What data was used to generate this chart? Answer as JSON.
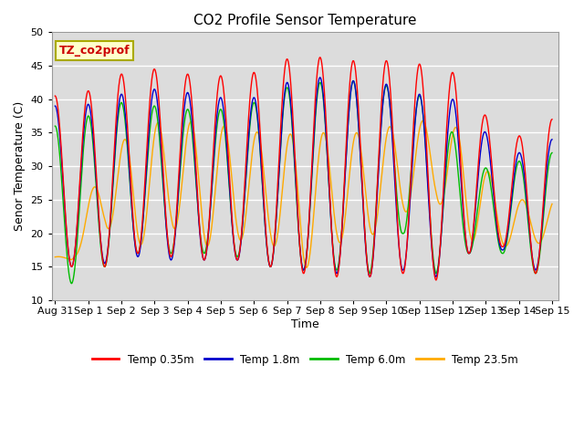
{
  "title": "CO2 Profile Sensor Temperature",
  "xlabel": "Time",
  "ylabel": "Senor Temperature (C)",
  "ylim": [
    10,
    50
  ],
  "background_color": "#dcdcdc",
  "grid_color": "white",
  "series_colors": {
    "Temp 0.35m": "#ff0000",
    "Temp 1.8m": "#0000cc",
    "Temp 6.0m": "#00bb00",
    "Temp 23.5m": "#ffaa00"
  },
  "annotation_text": "TZ_co2prof",
  "annotation_color": "#cc0000",
  "annotation_bg": "#ffffcc",
  "annotation_border": "#aaaa00",
  "x_tick_labels": [
    "Aug 31",
    "Sep 1",
    "Sep 2",
    "Sep 3",
    "Sep 4",
    "Sep 5",
    "Sep 6",
    "Sep 7",
    "Sep 8",
    "Sep 9",
    "Sep 10",
    "Sep 11",
    "Sep 12",
    "Sep 13",
    "Sep 14",
    "Sep 15"
  ],
  "yticks": [
    10,
    15,
    20,
    25,
    30,
    35,
    40,
    45,
    50
  ]
}
